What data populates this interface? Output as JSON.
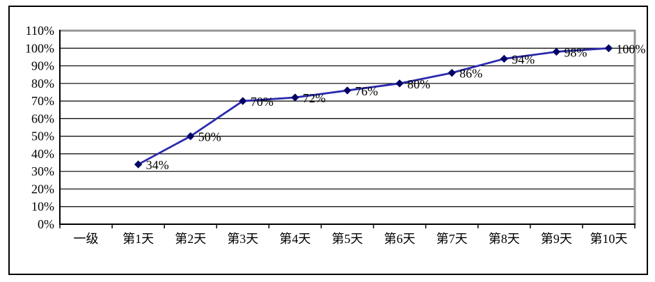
{
  "chart": {
    "background_color": "#ffffff",
    "frame_color": "#000000",
    "plot_border_color": "#969696",
    "gridline_color": "#000000",
    "axis_color": "#000000",
    "text_color": "#000000"
  },
  "chart_data": {
    "type": "line",
    "title": "",
    "xlabel": "",
    "ylabel": "",
    "legend": "none",
    "grid": true,
    "categories": [
      "一级",
      "第1天",
      "第2天",
      "第3天",
      "第4天",
      "第5天",
      "第6天",
      "第7天",
      "第8天",
      "第9天",
      "第10天"
    ],
    "series": [
      {
        "name": "",
        "values": [
          null,
          34,
          50,
          70,
          72,
          76,
          80,
          86,
          94,
          98,
          100
        ],
        "data_labels": [
          "",
          "34%",
          "50%",
          "70%",
          "72%",
          "76%",
          "80%",
          "86%",
          "94%",
          "98%",
          "100%"
        ],
        "line_color": "#2A2AAD",
        "marker": "diamond",
        "marker_color": "#000066"
      }
    ],
    "ylim": [
      0,
      110
    ],
    "y_step": 10,
    "y_tick_labels": [
      "0%",
      "10%",
      "20%",
      "30%",
      "40%",
      "50%",
      "60%",
      "70%",
      "80%",
      "90%",
      "100%",
      "110%"
    ]
  }
}
